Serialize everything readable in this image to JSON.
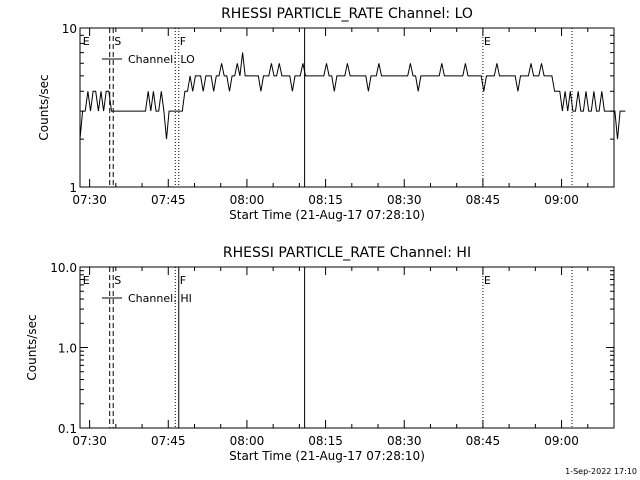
{
  "footer": {
    "date_stamp": "1-Sep-2022 17:10"
  },
  "chart_data": [
    {
      "type": "line",
      "title": "RHESSI PARTICLE_RATE Channel: LO",
      "xlabel": "Start Time (21-Aug-17 07:28:10)",
      "ylabel": "Counts/sec",
      "y_scale": "log",
      "ylim": [
        1,
        10
      ],
      "y_ticks": [
        {
          "v": 1,
          "label": "1"
        },
        {
          "v": 10,
          "label": "10"
        }
      ],
      "x_start": "07:28:10",
      "x_end": "09:10",
      "x_ticks": [
        "07:30",
        "07:45",
        "08:00",
        "08:15",
        "08:30",
        "08:45",
        "09:00"
      ],
      "legend": {
        "label": "Channel: LO",
        "placement": "top-left"
      },
      "markers": [
        {
          "time": "07:28:30",
          "label": "E",
          "style": "none"
        },
        {
          "time": "07:33:50",
          "label": "",
          "style": "dashed"
        },
        {
          "time": "07:34:30",
          "label": "S",
          "style": "dashed"
        },
        {
          "time": "07:46:20",
          "label": "",
          "style": "dotted"
        },
        {
          "time": "07:47:00",
          "label": "F",
          "style": "dotted"
        },
        {
          "time": "08:11:00",
          "label": "",
          "style": "solid"
        },
        {
          "time": "08:45:00",
          "label": "E",
          "style": "dotted"
        },
        {
          "time": "09:02:00",
          "label": "",
          "style": "dotted"
        }
      ],
      "series": [
        {
          "step_seconds": 30,
          "values": [
            2,
            3,
            3,
            4,
            3,
            4,
            4,
            3,
            4,
            3,
            4,
            4,
            3,
            3,
            3,
            3,
            3,
            3,
            3,
            3,
            3,
            3,
            3,
            3,
            3,
            3,
            4,
            3,
            4,
            3,
            3,
            4,
            3,
            2,
            3,
            3,
            3,
            3,
            3,
            3,
            4,
            4,
            5,
            4,
            5,
            5,
            5,
            4,
            5,
            5,
            5,
            4,
            5,
            5,
            6,
            5,
            5,
            4,
            5,
            5,
            6,
            5,
            7,
            5,
            5,
            5,
            5,
            5,
            5,
            4,
            5,
            5,
            5,
            6,
            5,
            5,
            6,
            5,
            5,
            5,
            5,
            4,
            5,
            5,
            5,
            6,
            5,
            5,
            5,
            5,
            5,
            5,
            5,
            5,
            6,
            5,
            5,
            4,
            5,
            5,
            5,
            5,
            6,
            5,
            5,
            5,
            5,
            5,
            5,
            5,
            4,
            5,
            5,
            5,
            6,
            5,
            5,
            5,
            5,
            5,
            5,
            5,
            5,
            5,
            5,
            5,
            6,
            5,
            5,
            4,
            5,
            5,
            5,
            5,
            5,
            5,
            5,
            5,
            6,
            5,
            5,
            5,
            5,
            5,
            5,
            5,
            5,
            6,
            5,
            5,
            5,
            5,
            5,
            5,
            4,
            5,
            5,
            5,
            5,
            6,
            5,
            5,
            5,
            5,
            5,
            5,
            5,
            4,
            5,
            5,
            5,
            5,
            6,
            5,
            5,
            5,
            6,
            5,
            5,
            5,
            5,
            4,
            4,
            4,
            3,
            4,
            3,
            4,
            3,
            3,
            4,
            3,
            3,
            4,
            3,
            3,
            4,
            3,
            3,
            4,
            3,
            3,
            3,
            3,
            3,
            2,
            3,
            3,
            3
          ]
        }
      ]
    },
    {
      "type": "line",
      "title": "RHESSI PARTICLE_RATE Channel: HI",
      "xlabel": "Start Time (21-Aug-17 07:28:10)",
      "ylabel": "Counts/sec",
      "y_scale": "log",
      "ylim": [
        0.1,
        10
      ],
      "y_ticks": [
        {
          "v": 0.1,
          "label": "0.1"
        },
        {
          "v": 1,
          "label": "1.0"
        },
        {
          "v": 10,
          "label": "10.0"
        }
      ],
      "x_start": "07:28:10",
      "x_end": "09:10",
      "x_ticks": [
        "07:30",
        "07:45",
        "08:00",
        "08:15",
        "08:30",
        "08:45",
        "09:00"
      ],
      "legend": {
        "label": "Channel: HI",
        "placement": "top-left"
      },
      "markers": [
        {
          "time": "07:28:30",
          "label": "E",
          "style": "none"
        },
        {
          "time": "07:33:50",
          "label": "",
          "style": "dashed"
        },
        {
          "time": "07:34:30",
          "label": "S",
          "style": "dashed"
        },
        {
          "time": "07:46:20",
          "label": "",
          "style": "dotted"
        },
        {
          "time": "07:47:00",
          "label": "F",
          "style": "solid"
        },
        {
          "time": "08:11:00",
          "label": "",
          "style": "solid"
        },
        {
          "time": "08:45:00",
          "label": "E",
          "style": "dotted"
        },
        {
          "time": "09:02:00",
          "label": "",
          "style": "dotted"
        }
      ],
      "series": []
    }
  ]
}
